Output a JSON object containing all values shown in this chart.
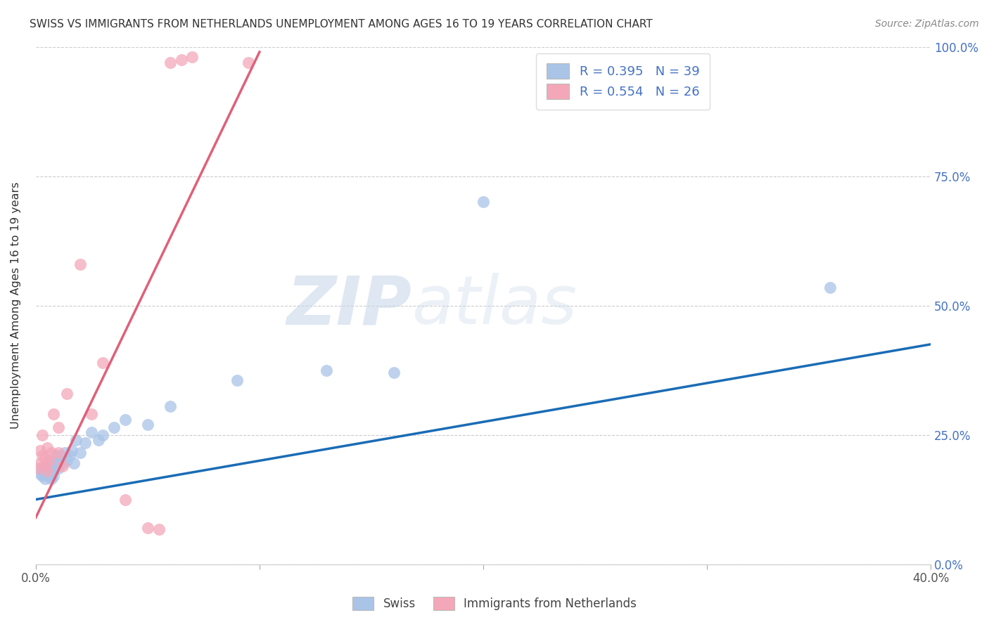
{
  "title": "SWISS VS IMMIGRANTS FROM NETHERLANDS UNEMPLOYMENT AMONG AGES 16 TO 19 YEARS CORRELATION CHART",
  "source": "Source: ZipAtlas.com",
  "ylabel": "Unemployment Among Ages 16 to 19 years",
  "xlim": [
    0.0,
    0.4
  ],
  "ylim": [
    0.0,
    1.0
  ],
  "x_ticks": [
    0.0,
    0.1,
    0.2,
    0.3,
    0.4
  ],
  "y_ticks": [
    0.0,
    0.25,
    0.5,
    0.75,
    1.0
  ],
  "r_swiss": 0.395,
  "n_swiss": 39,
  "r_nl": 0.554,
  "n_nl": 26,
  "swiss_color": "#aac4e8",
  "nl_color": "#f4a7b9",
  "swiss_line_color": "#1a6cb5",
  "nl_line_color": "#e0607a",
  "legend_label_swiss": "Swiss",
  "legend_label_nl": "Immigrants from Netherlands",
  "watermark_zip": "ZIP",
  "watermark_atlas": "atlas",
  "swiss_scatter_x": [
    0.002,
    0.003,
    0.003,
    0.004,
    0.004,
    0.005,
    0.005,
    0.006,
    0.006,
    0.007,
    0.007,
    0.008,
    0.008,
    0.009,
    0.009,
    0.01,
    0.01,
    0.011,
    0.012,
    0.013,
    0.014,
    0.015,
    0.016,
    0.017,
    0.018,
    0.02,
    0.022,
    0.025,
    0.028,
    0.03,
    0.035,
    0.04,
    0.05,
    0.06,
    0.09,
    0.13,
    0.16,
    0.2,
    0.355
  ],
  "swiss_scatter_y": [
    0.175,
    0.17,
    0.185,
    0.175,
    0.165,
    0.18,
    0.195,
    0.17,
    0.18,
    0.165,
    0.175,
    0.18,
    0.17,
    0.195,
    0.21,
    0.185,
    0.195,
    0.21,
    0.195,
    0.215,
    0.2,
    0.21,
    0.22,
    0.195,
    0.24,
    0.215,
    0.235,
    0.255,
    0.24,
    0.25,
    0.265,
    0.28,
    0.27,
    0.305,
    0.355,
    0.375,
    0.37,
    0.7,
    0.535
  ],
  "nl_scatter_x": [
    0.001,
    0.002,
    0.002,
    0.003,
    0.003,
    0.004,
    0.004,
    0.005,
    0.005,
    0.006,
    0.007,
    0.008,
    0.01,
    0.01,
    0.012,
    0.014,
    0.02,
    0.025,
    0.03,
    0.04,
    0.05,
    0.055,
    0.06,
    0.065,
    0.07,
    0.095
  ],
  "nl_scatter_y": [
    0.185,
    0.195,
    0.22,
    0.21,
    0.25,
    0.19,
    0.205,
    0.18,
    0.225,
    0.2,
    0.215,
    0.29,
    0.215,
    0.265,
    0.19,
    0.33,
    0.58,
    0.29,
    0.39,
    0.125,
    0.07,
    0.068,
    0.97,
    0.975,
    0.98,
    0.97
  ],
  "swiss_trend_x": [
    0.0,
    0.4
  ],
  "swiss_trend_y": [
    0.125,
    0.425
  ],
  "nl_trend_x": [
    0.0,
    0.1
  ],
  "nl_trend_y": [
    0.09,
    0.99
  ]
}
